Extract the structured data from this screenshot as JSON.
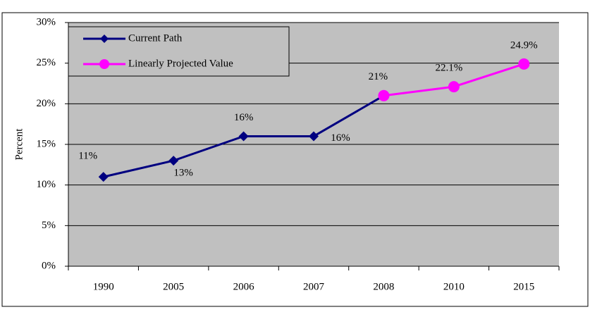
{
  "chart_data": {
    "type": "line",
    "y_label": "Percent",
    "categories": [
      "1990",
      "2005",
      "2006",
      "2007",
      "2008",
      "2010",
      "2015"
    ],
    "series": [
      {
        "name": "Current Path",
        "color": "#000080",
        "marker": "diamond",
        "values": [
          11,
          13,
          16,
          16,
          21,
          null,
          null
        ],
        "value_labels": [
          "11%",
          "13%",
          "16%",
          "16%",
          null,
          null,
          null
        ]
      },
      {
        "name": "Linearly Projected Value",
        "color": "#ff00ff",
        "marker": "circle",
        "values": [
          null,
          null,
          null,
          null,
          21,
          22.1,
          24.9
        ],
        "value_labels": [
          null,
          null,
          null,
          null,
          "21%",
          "22.1%",
          "24.9%"
        ]
      }
    ],
    "ylim": [
      0,
      30
    ],
    "yticks": [
      {
        "value": 0,
        "label": "0%"
      },
      {
        "value": 5,
        "label": "5%"
      },
      {
        "value": 10,
        "label": "10%"
      },
      {
        "value": 15,
        "label": "15%"
      },
      {
        "value": 20,
        "label": "20%"
      },
      {
        "value": 25,
        "label": "25%"
      },
      {
        "value": 30,
        "label": "30%"
      }
    ],
    "grid": true,
    "legend": "top-left"
  }
}
